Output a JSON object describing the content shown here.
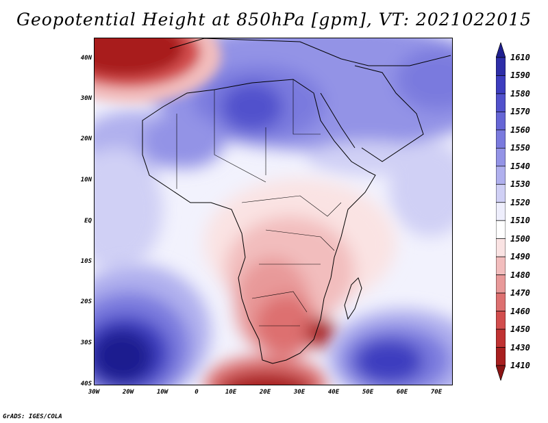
{
  "title": "Geopotential Height at 850hPa [gpm], VT: 2021022015",
  "footer": "GrADS: IGES/COLA",
  "lat_labels": [
    "40N",
    "30N",
    "20N",
    "10N",
    "EQ",
    "10S",
    "20S",
    "30S",
    "40S"
  ],
  "lon_labels": [
    "30W",
    "20W",
    "10W",
    "0",
    "10E",
    "20E",
    "30E",
    "40E",
    "50E",
    "60E",
    "70E"
  ],
  "colorbar": {
    "labels": [
      "1610",
      "1590",
      "1580",
      "1570",
      "1560",
      "1550",
      "1540",
      "1530",
      "1520",
      "1510",
      "1500",
      "1490",
      "1480",
      "1470",
      "1460",
      "1450",
      "1430",
      "1410"
    ],
    "colors": [
      "#1f1f8f",
      "#2e2ea8",
      "#3d3dbf",
      "#5151cc",
      "#6666d6",
      "#7a7ade",
      "#9393e6",
      "#b0b0ee",
      "#d0d0f5",
      "#eeeefc",
      "#ffffff",
      "#fae3e3",
      "#f2bdbd",
      "#e89999",
      "#dd7070",
      "#d24d4d",
      "#c03232",
      "#a81f1f",
      "#8b1414"
    ]
  },
  "chart_data": {
    "type": "heatmap",
    "title": "Geopotential Height at 850hPa [gpm], VT: 2021022015",
    "x_range": [
      "30W",
      "75E"
    ],
    "y_range": [
      "40S",
      "45N"
    ],
    "levels": [
      1410,
      1430,
      1450,
      1460,
      1470,
      1480,
      1490,
      1500,
      1510,
      1520,
      1530,
      1540,
      1550,
      1560,
      1570,
      1580,
      1590,
      1610
    ]
  }
}
